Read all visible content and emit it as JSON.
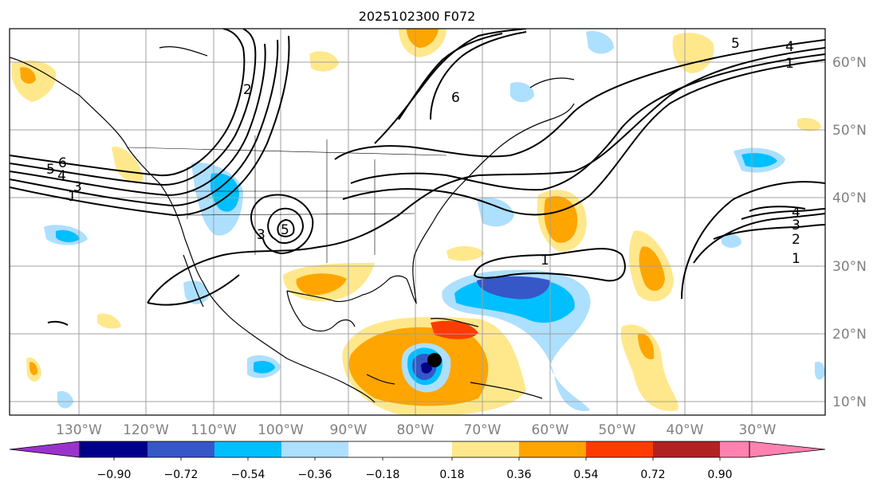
{
  "title": "2025102300 F072",
  "lon_labels": [
    "130°W",
    "120°W",
    "110°W",
    "100°W",
    "90°W",
    "80°W",
    "70°W",
    "60°W",
    "50°W",
    "40°W",
    "30°W"
  ],
  "lat_labels": [
    "60°N",
    "50°N",
    "40°N",
    "30°N",
    "20°N",
    "10°N"
  ],
  "colorbar": {
    "tick_labels": [
      "−0.90",
      "−0.72",
      "−0.54",
      "−0.36",
      "−0.18",
      "0.18",
      "0.36",
      "0.54",
      "0.72",
      "0.90"
    ],
    "colors": [
      "#9a33cc",
      "#00008b",
      "#3657c8",
      "#00bfff",
      "#addfff",
      "#ffffff",
      "#ffe88c",
      "#ffa500",
      "#ff3c00",
      "#b22222",
      "#ff82b0"
    ]
  },
  "contour_labels": [
    "1",
    "2",
    "3",
    "4",
    "5",
    "6"
  ],
  "storm_marker": "storm-center-dot",
  "map_extent": {
    "lon_min": -140,
    "lon_max": -19,
    "lat_min": 8,
    "lat_max": 65
  },
  "colors": {
    "grid": "#a0a0a0",
    "contour": "#000000",
    "coast": "#000000"
  }
}
